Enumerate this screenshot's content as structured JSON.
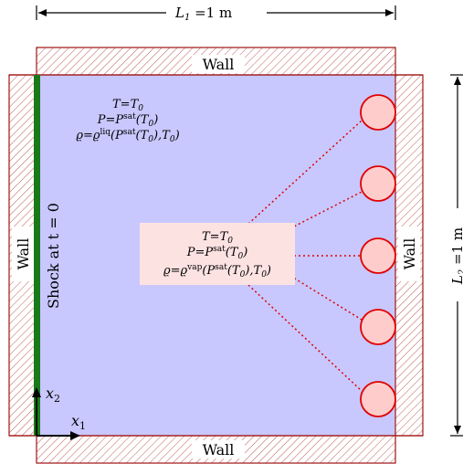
{
  "dimensions": {
    "width_label": "L",
    "width_sub": "1",
    "width_value": " =1 m",
    "height_label": "L",
    "height_sub": "2",
    "height_value": " =1 m"
  },
  "walls": {
    "top": "Wall",
    "bottom": "Wall",
    "left": "Wall",
    "right": "Wall"
  },
  "shock_label": "Shock at t = 0",
  "liquid_state": {
    "line1": "T=T",
    "line1_sub": "0",
    "line2": "P=P",
    "line2_sup": "sat",
    "line2_tail": "(T",
    "line2_tail_sub": "0",
    "line2_end": ")",
    "line3": "ϱ=ϱ",
    "line3_sup": "liq",
    "line3_mid": "(P",
    "line3_mid_sup": "sat",
    "line3_tail": "(T",
    "line3_tail_sub": "0",
    "line3_mid2": "),T",
    "line3_mid2_sub": "0",
    "line3_end": ")"
  },
  "vapor_state": {
    "line1": "T=T",
    "line1_sub": "0",
    "line2": "P=P",
    "line2_sup": "sat",
    "line2_tail": "(T",
    "line2_tail_sub": "0",
    "line2_end": ")",
    "line3": "ϱ=ϱ",
    "line3_sup": "vap",
    "line3_mid": "(P",
    "line3_mid_sup": "sat",
    "line3_tail": "(T",
    "line3_tail_sub": "0",
    "line3_mid2": "),T",
    "line3_mid2_sub": "0",
    "line3_end": ")"
  },
  "axes": {
    "x": "x",
    "x_sub": "1",
    "y": "x",
    "y_sub": "2"
  },
  "colors": {
    "domain_fill": "#c8c8ff",
    "wall_stroke": "#a01414",
    "shock": "#1a7a1a",
    "bubble_fill": "#ffcccc",
    "bubble_stroke": "#e00000",
    "label_box": "#fde2e2"
  }
}
